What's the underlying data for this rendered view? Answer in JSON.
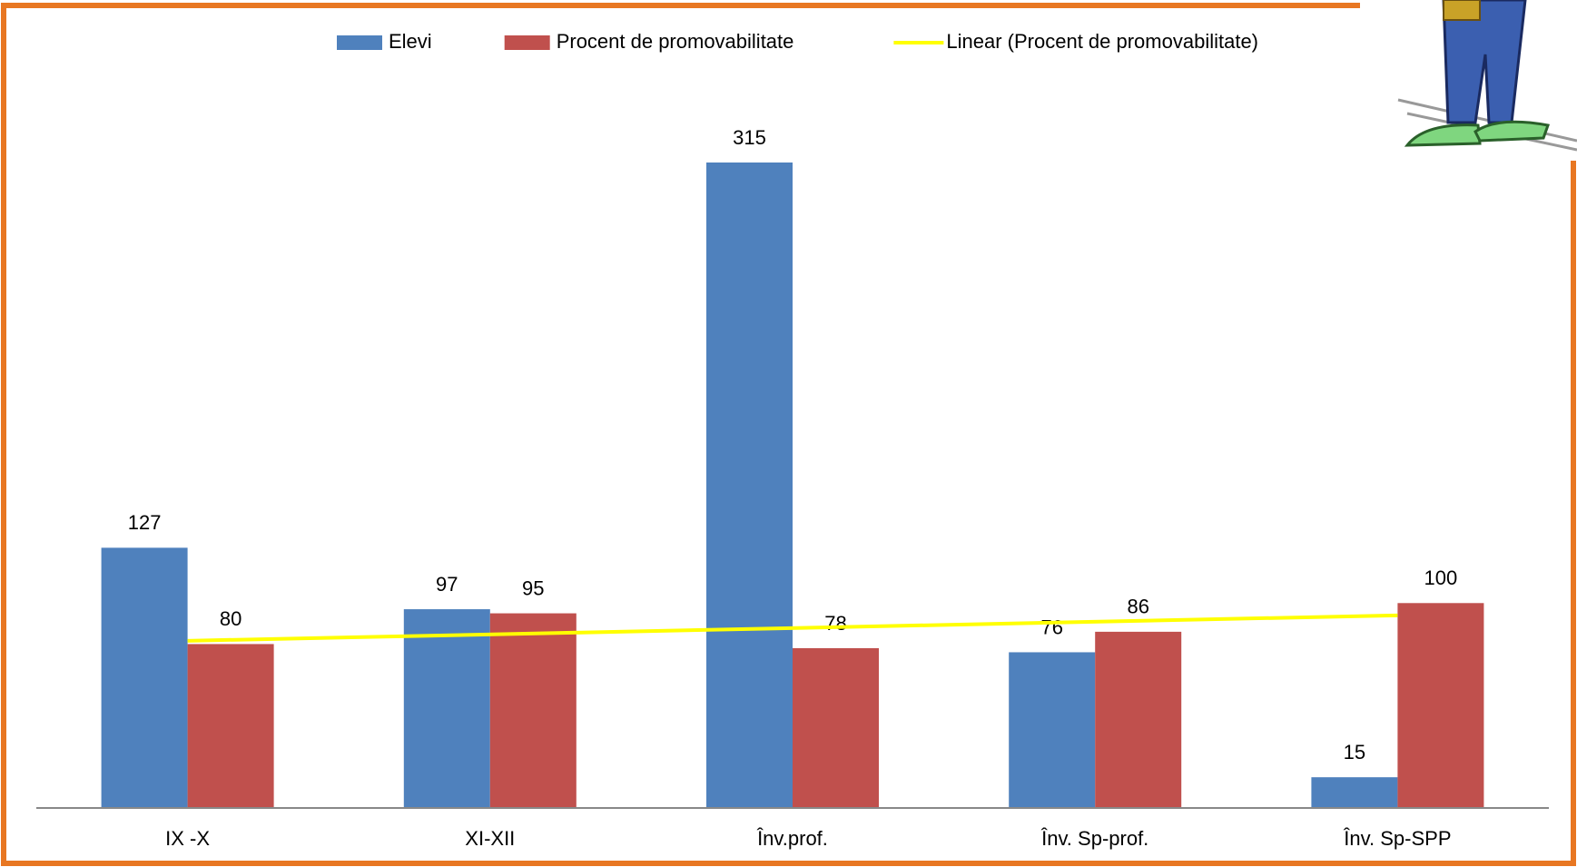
{
  "chart_data": {
    "type": "bar",
    "categories": [
      "IX -X",
      "XI-XII",
      "Înv.prof.",
      "Înv. Sp-prof.",
      "Înv. Sp-SPP"
    ],
    "series": [
      {
        "name": "Elevi",
        "color": "#4f81bd",
        "values": [
          127,
          97,
          315,
          76,
          15
        ]
      },
      {
        "name": "Procent de promovabilitate",
        "color": "#c0504d",
        "values": [
          80,
          95,
          78,
          86,
          100
        ]
      }
    ],
    "trendline": {
      "name": "Linear (Procent de promovabilitate)",
      "color": "#ffff00",
      "series": 1
    },
    "ylim": [
      0,
      350
    ]
  }
}
